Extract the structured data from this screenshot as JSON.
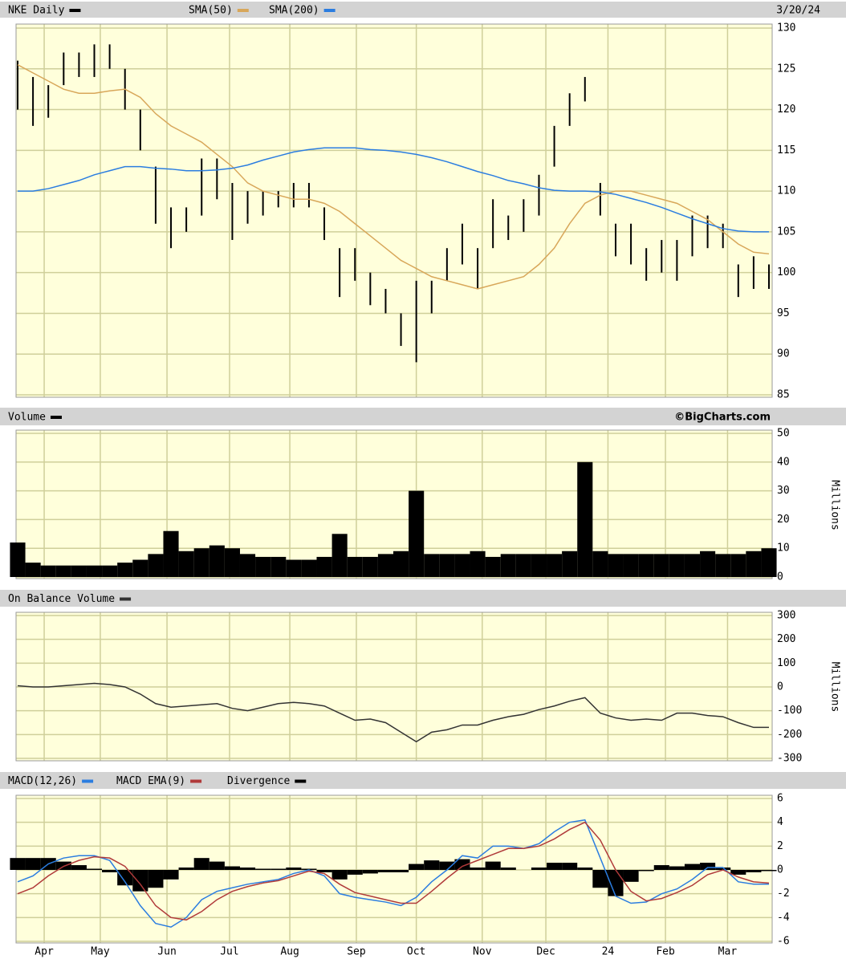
{
  "x_axis": {
    "xlim": [
      0,
      49
    ],
    "xticks": [
      {
        "value": 1.73,
        "label": "Apr"
      },
      {
        "value": 5.39,
        "label": "May"
      },
      {
        "value": 9.74,
        "label": "Jun"
      },
      {
        "value": 13.82,
        "label": "Jul"
      },
      {
        "value": 17.75,
        "label": "Aug"
      },
      {
        "value": 22.09,
        "label": "Sep"
      },
      {
        "value": 26.0,
        "label": "Oct"
      },
      {
        "value": 30.3,
        "label": "Nov"
      },
      {
        "value": 34.45,
        "label": "Dec"
      },
      {
        "value": 38.5,
        "label": "24"
      },
      {
        "value": 42.25,
        "label": "Feb"
      },
      {
        "value": 46.3,
        "label": "Mar"
      }
    ]
  },
  "chart_data": [
    {
      "type": "range",
      "date": "3/20/24",
      "ylim": [
        85,
        130
      ],
      "yticks": [
        85,
        90,
        95,
        100,
        105,
        110,
        115,
        120,
        125,
        130
      ],
      "grid": true,
      "series": [
        {
          "name": "NKE Daily",
          "color": "#000000",
          "low": [
            120,
            118,
            119,
            123,
            124,
            124,
            125,
            120,
            115,
            106,
            103,
            105,
            107,
            109,
            104,
            106,
            107,
            108,
            108,
            108,
            104,
            97,
            99,
            96,
            95,
            91,
            89,
            95,
            99,
            101,
            98,
            103,
            104,
            105,
            107,
            113,
            118,
            121,
            107,
            102,
            101,
            99,
            100,
            99,
            102,
            103,
            103,
            97,
            98,
            98
          ],
          "high": [
            126,
            124,
            123,
            127,
            127,
            128,
            128,
            125,
            120,
            113,
            108,
            108,
            114,
            114,
            111,
            110,
            110,
            110,
            111,
            111,
            108,
            103,
            103,
            100,
            98,
            95,
            99,
            99,
            103,
            106,
            103,
            109,
            107,
            109,
            112,
            118,
            122,
            124,
            111,
            106,
            106,
            103,
            104,
            104,
            107,
            107,
            106,
            101,
            102,
            101
          ]
        },
        {
          "name": "SMA(50)",
          "color": "#d8a75a",
          "values": [
            125.5,
            124.5,
            123.5,
            122.5,
            122,
            122,
            122.3,
            122.5,
            121.5,
            119.5,
            118,
            117,
            116,
            114.5,
            113,
            111,
            110,
            109.5,
            109,
            109,
            108.5,
            107.5,
            106,
            104.5,
            103,
            101.5,
            100.5,
            99.5,
            99,
            98.5,
            98,
            98.5,
            99,
            99.5,
            101,
            103,
            106,
            108.5,
            109.5,
            110,
            110,
            109.5,
            109,
            108.5,
            107.5,
            106.5,
            105,
            103.5,
            102.5,
            102.3
          ]
        },
        {
          "name": "SMA(200)",
          "color": "#2b7de0",
          "values": [
            110,
            110,
            110.3,
            110.8,
            111.3,
            112,
            112.5,
            113,
            113,
            112.8,
            112.7,
            112.5,
            112.5,
            112.6,
            112.8,
            113.2,
            113.8,
            114.3,
            114.8,
            115.1,
            115.3,
            115.3,
            115.3,
            115.1,
            115,
            114.8,
            114.5,
            114.1,
            113.6,
            113,
            112.4,
            111.9,
            111.3,
            110.9,
            110.4,
            110.1,
            110,
            110,
            109.9,
            109.6,
            109.1,
            108.6,
            108,
            107.3,
            106.6,
            106,
            105.4,
            105.1,
            105,
            105
          ]
        }
      ]
    },
    {
      "type": "bar",
      "source": "©BigCharts.com",
      "ylabel": "Millions",
      "ylim": [
        0,
        50
      ],
      "yticks": [
        0,
        10,
        20,
        30,
        40,
        50
      ],
      "grid": true,
      "series": [
        {
          "name": "Volume",
          "color": "#000000",
          "values": [
            12,
            5,
            4,
            4,
            4,
            4,
            4,
            5,
            6,
            8,
            16,
            9,
            10,
            11,
            10,
            8,
            7,
            7,
            6,
            6,
            7,
            15,
            7,
            7,
            8,
            9,
            30,
            8,
            8,
            8,
            9,
            7,
            8,
            8,
            8,
            8,
            9,
            40,
            9,
            8,
            8,
            8,
            8,
            8,
            8,
            9,
            8,
            8,
            9,
            10
          ]
        }
      ]
    },
    {
      "type": "line",
      "ylabel": "Millions",
      "ylim": [
        -300,
        300
      ],
      "yticks": [
        -300,
        -200,
        -100,
        0,
        100,
        200,
        300
      ],
      "grid": true,
      "series": [
        {
          "name": "On Balance Volume",
          "color": "#333333",
          "values": [
            5,
            0,
            0,
            5,
            10,
            15,
            10,
            0,
            -30,
            -70,
            -85,
            -80,
            -75,
            -70,
            -90,
            -100,
            -85,
            -70,
            -65,
            -70,
            -80,
            -110,
            -140,
            -135,
            -150,
            -190,
            -230,
            -190,
            -180,
            -160,
            -160,
            -140,
            -125,
            -115,
            -95,
            -80,
            -60,
            -45,
            -110,
            -130,
            -140,
            -135,
            -140,
            -110,
            -110,
            -120,
            -125,
            -150,
            -170,
            -170
          ]
        }
      ]
    },
    {
      "type": "line",
      "ylim": [
        -6,
        6
      ],
      "yticks": [
        -6,
        -4,
        -2,
        0,
        2,
        4,
        6
      ],
      "grid": true,
      "series": [
        {
          "name": "MACD(12,26)",
          "color": "#2b7de0",
          "values": [
            -1,
            -0.5,
            0.5,
            1,
            1.2,
            1.2,
            0.8,
            -1,
            -3,
            -4.5,
            -4.8,
            -4,
            -2.5,
            -1.8,
            -1.5,
            -1.2,
            -1,
            -0.8,
            -0.3,
            0,
            -0.5,
            -2,
            -2.3,
            -2.5,
            -2.7,
            -3,
            -2.3,
            -1,
            0,
            1.2,
            1,
            2,
            2,
            1.8,
            2.2,
            3.2,
            4,
            4.2,
            1,
            -2.2,
            -2.8,
            -2.7,
            -2,
            -1.6,
            -0.8,
            0.2,
            0.2,
            -1,
            -1.2,
            -1.2
          ]
        },
        {
          "name": "MACD EMA(9)",
          "color": "#b03a3a",
          "values": [
            -2,
            -1.5,
            -0.5,
            0.3,
            0.8,
            1.1,
            1,
            0.3,
            -1.2,
            -3,
            -4,
            -4.2,
            -3.5,
            -2.5,
            -1.8,
            -1.4,
            -1.1,
            -0.9,
            -0.5,
            -0.1,
            -0.3,
            -1.2,
            -1.9,
            -2.2,
            -2.5,
            -2.8,
            -2.8,
            -1.8,
            -0.7,
            0.3,
            0.8,
            1.3,
            1.8,
            1.8,
            2,
            2.6,
            3.4,
            4,
            2.5,
            0,
            -1.8,
            -2.6,
            -2.4,
            -1.9,
            -1.3,
            -0.4,
            0,
            -0.6,
            -1,
            -1.1
          ]
        },
        {
          "name": "Divergence",
          "type": "bar",
          "color": "#000000",
          "values": [
            1,
            1,
            1,
            0.7,
            0.4,
            0.1,
            -0.2,
            -1.3,
            -1.8,
            -1.5,
            -0.8,
            0.2,
            1,
            0.7,
            0.3,
            0.2,
            0.1,
            0.1,
            0.2,
            0.1,
            -0.2,
            -0.8,
            -0.4,
            -0.3,
            -0.2,
            -0.2,
            0.5,
            0.8,
            0.7,
            0.9,
            0.2,
            0.7,
            0.2,
            0,
            0.2,
            0.6,
            0.6,
            0.2,
            -1.5,
            -2.2,
            -1,
            -0.1,
            0.4,
            0.3,
            0.5,
            0.6,
            0.2,
            -0.4,
            -0.2,
            -0.1
          ]
        }
      ]
    }
  ]
}
